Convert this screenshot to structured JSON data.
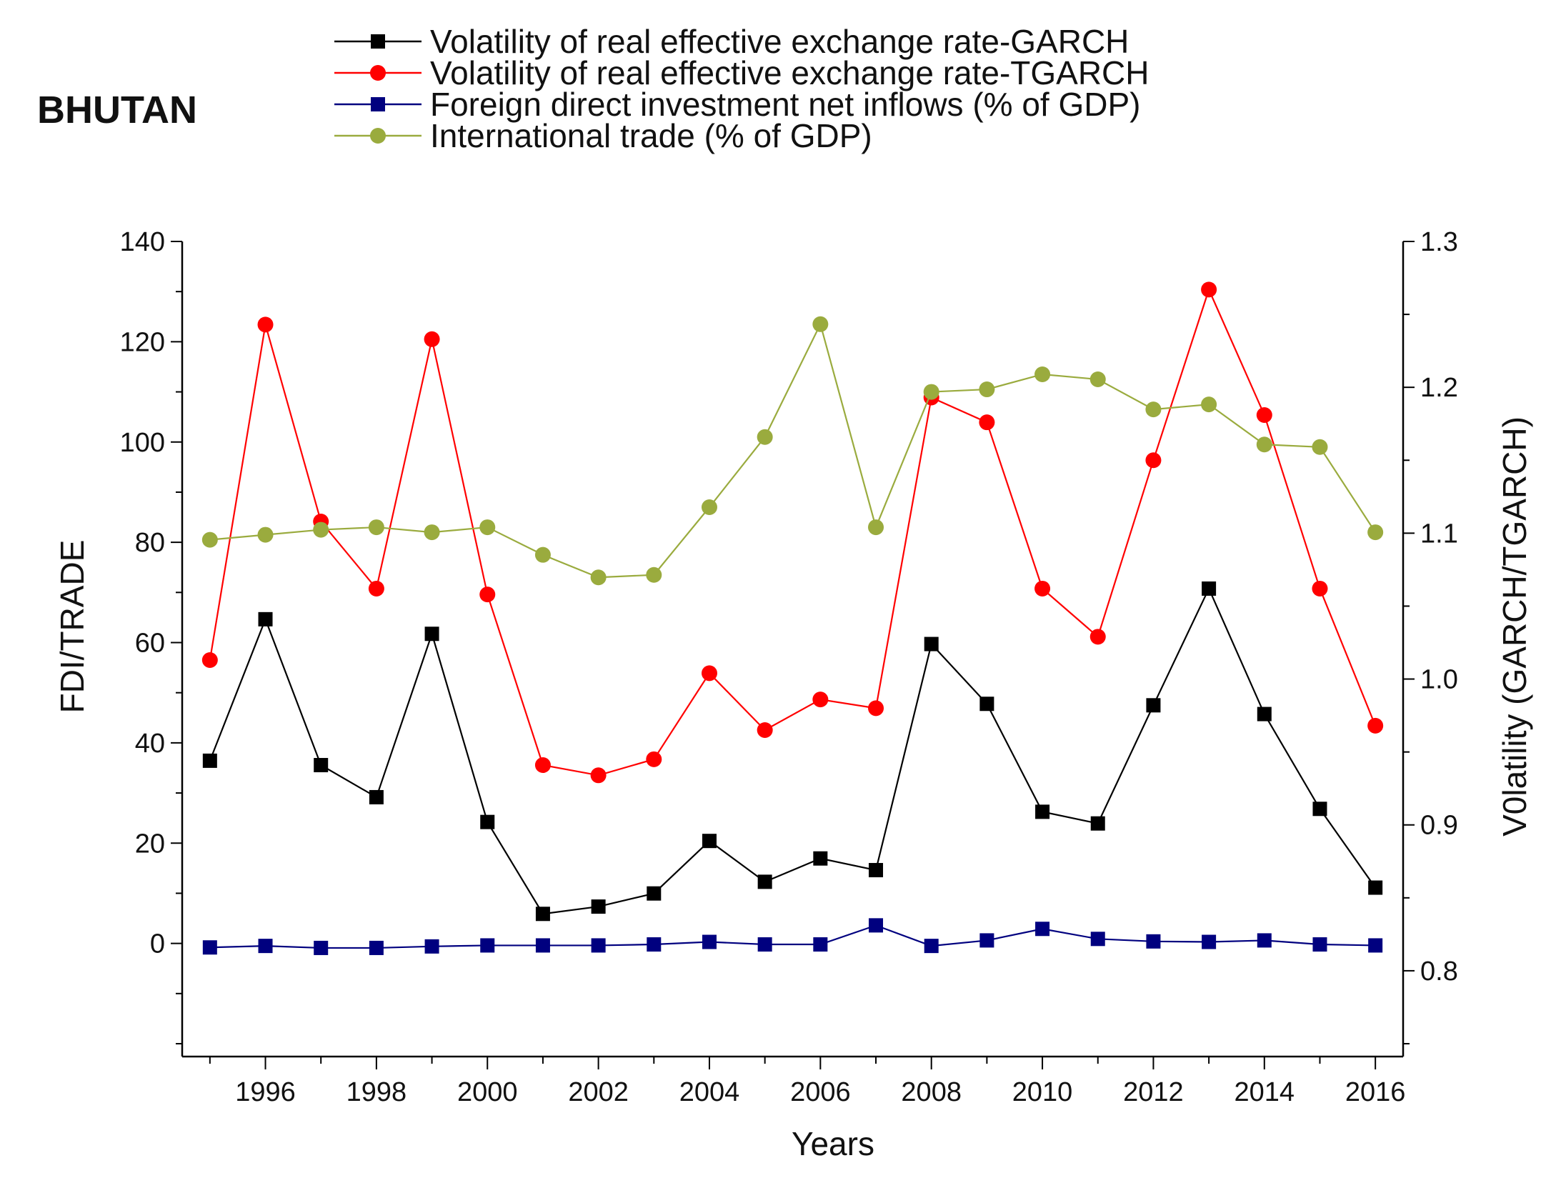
{
  "chart_data": {
    "type": "line",
    "title": "BHUTAN",
    "xlabel": "Years",
    "ylabel_left": "FDI/TRADE",
    "ylabel_right": "V0latility (GARCH/TGARCH)",
    "x": [
      1995,
      1996,
      1997,
      1998,
      1999,
      2000,
      2001,
      2002,
      2003,
      2004,
      2005,
      2006,
      2007,
      2008,
      2009,
      2010,
      2011,
      2012,
      2013,
      2014,
      2015,
      2016
    ],
    "xlim": [
      1994.5,
      2016.5
    ],
    "x_ticks": [
      "1996",
      "1998",
      "2000",
      "2002",
      "2004",
      "2006",
      "2008",
      "2010",
      "2012",
      "2014",
      "2016"
    ],
    "ylim_left": [
      -20,
      140
    ],
    "y_ticks_left": [
      "0",
      "20",
      "40",
      "60",
      "80",
      "100",
      "120",
      "140"
    ],
    "ylim_right": [
      0.75,
      1.3
    ],
    "y_ticks_right": [
      "0.8",
      "0.9",
      "1.0",
      "1.1",
      "1.2",
      "1.3"
    ],
    "series": [
      {
        "name": "Volatility of real effective exchange rate-GARCH",
        "axis": "right",
        "color": "#000000",
        "marker": "square",
        "values": [
          0.944,
          1.041,
          0.941,
          0.919,
          1.031,
          0.902,
          0.839,
          0.844,
          0.853,
          0.889,
          0.861,
          0.877,
          0.869,
          1.024,
          0.983,
          0.909,
          0.901,
          0.982,
          1.062,
          0.976,
          0.911,
          0.857
        ]
      },
      {
        "name": "Volatility of real effective exchange rate-TGARCH",
        "axis": "right",
        "color": "#ff0000",
        "marker": "circle",
        "values": [
          1.013,
          1.243,
          1.108,
          1.062,
          1.233,
          1.058,
          0.941,
          0.934,
          0.945,
          1.004,
          0.965,
          0.986,
          0.98,
          1.193,
          1.176,
          1.062,
          1.029,
          1.15,
          1.267,
          1.181,
          1.062,
          0.968
        ]
      },
      {
        "name": "Foreign direct investment net inflows (% of GDP)",
        "axis": "left",
        "color": "#00007f",
        "marker": "square",
        "values": [
          -0.8,
          -0.5,
          -0.9,
          -0.9,
          -0.6,
          -0.4,
          -0.4,
          -0.4,
          -0.2,
          0.3,
          -0.2,
          -0.2,
          3.6,
          -0.5,
          0.6,
          2.9,
          0.9,
          0.4,
          0.3,
          0.6,
          -0.2,
          -0.4
        ]
      },
      {
        "name": "International trade (% of GDP)",
        "axis": "left",
        "color": "#9aab3e",
        "marker": "circle",
        "values": [
          80.5,
          81.5,
          82.5,
          83,
          82,
          83,
          77.5,
          73,
          73.5,
          87,
          101,
          123.5,
          83,
          110,
          110.5,
          113.5,
          112.5,
          106.5,
          107.5,
          99.5,
          99,
          82
        ]
      }
    ]
  }
}
